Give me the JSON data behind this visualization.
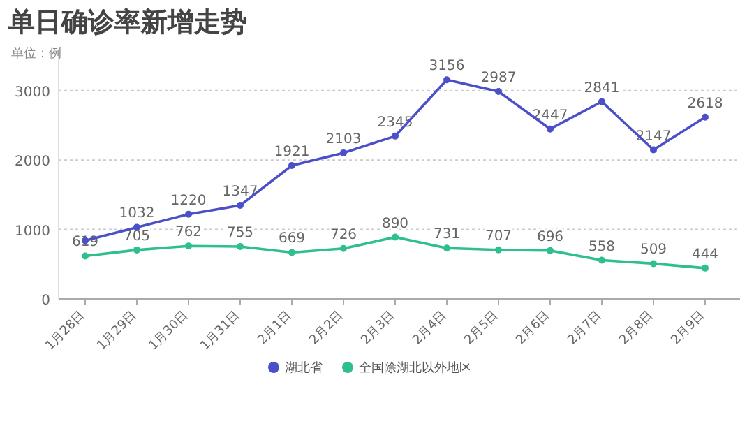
{
  "chart_data": {
    "type": "line",
    "title": "单日确诊率新增走势",
    "subtitle": "单位：例",
    "categories": [
      "1月28日",
      "1月29日",
      "1月30日",
      "1月31日",
      "2月1日",
      "2月2日",
      "2月3日",
      "2月4日",
      "2月5日",
      "2月6日",
      "2月7日",
      "2月8日",
      "2月9日"
    ],
    "series": [
      {
        "name": "湖北省",
        "color": "#4b4fc8",
        "values": [
          840,
          1032,
          1220,
          1347,
          1921,
          2103,
          2345,
          3156,
          2987,
          2447,
          2841,
          2147,
          2618
        ],
        "value_labels": [
          null,
          "1032",
          "1220",
          "1347",
          "1921",
          "2103",
          "2345",
          "3156",
          "2987",
          "2447",
          "2841",
          "2147",
          "2618"
        ]
      },
      {
        "name": "全国除湖北以外地区",
        "color": "#2fbf8c",
        "values": [
          619,
          705,
          762,
          755,
          669,
          726,
          890,
          731,
          707,
          696,
          558,
          509,
          444
        ],
        "value_labels": [
          "619",
          "705",
          "762",
          "755",
          "669",
          "726",
          "890",
          "731",
          "707",
          "696",
          "558",
          "509",
          "444"
        ]
      }
    ],
    "ylim": [
      0,
      3500
    ],
    "yticks": [
      0,
      1000,
      2000,
      3000
    ],
    "grid": "y",
    "legend": "bottom",
    "marker": "circle",
    "line_style": "solid"
  }
}
